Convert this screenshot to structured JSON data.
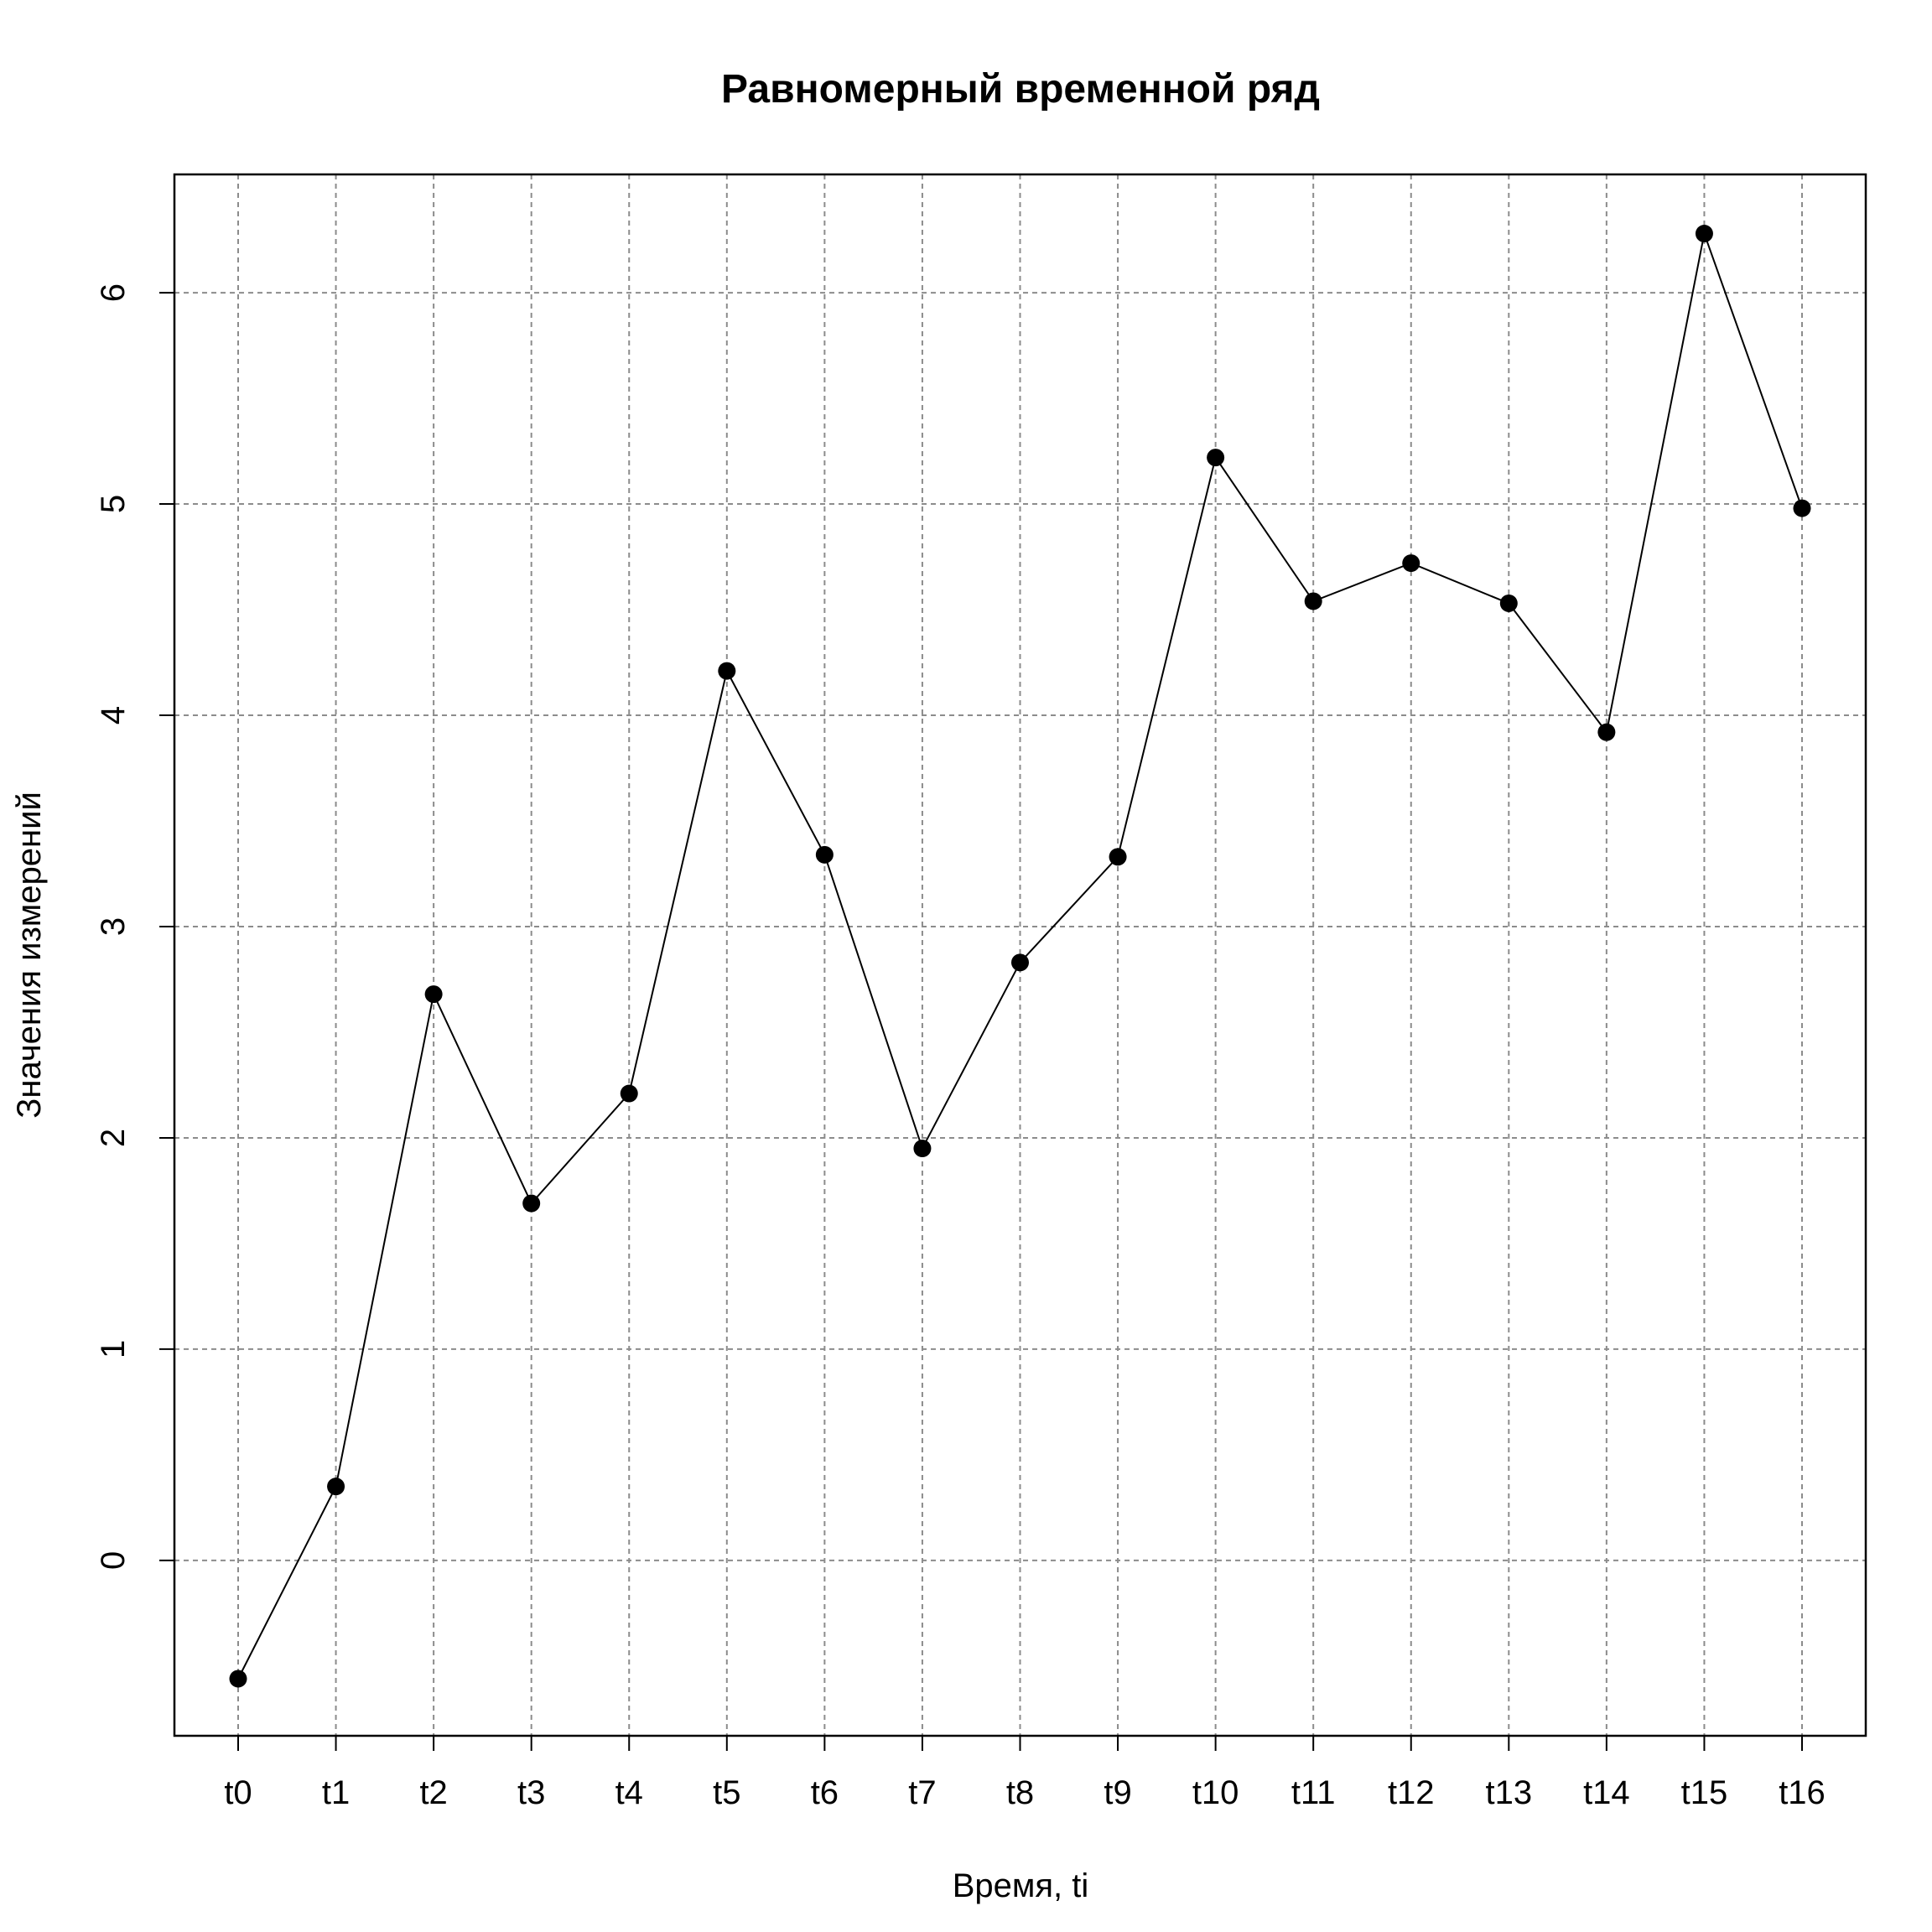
{
  "chart_data": {
    "type": "line",
    "title": "Равномерный временной ряд",
    "xlabel": "Время, ti",
    "ylabel": "Значения измерений",
    "categories": [
      "t0",
      "t1",
      "t2",
      "t3",
      "t4",
      "t5",
      "t6",
      "t7",
      "t8",
      "t9",
      "t10",
      "t11",
      "t12",
      "t13",
      "t14",
      "t15",
      "t16"
    ],
    "series": [
      {
        "values": [
          -0.56,
          0.35,
          2.68,
          1.69,
          2.21,
          4.21,
          3.34,
          1.95,
          2.83,
          3.33,
          5.22,
          4.54,
          4.72,
          4.53,
          3.92,
          6.28,
          4.98
        ]
      }
    ],
    "ylim": [
      -0.83,
      6.56
    ],
    "yticks": [
      0,
      1,
      2,
      3,
      4,
      5,
      6
    ],
    "grid": true,
    "legend": "none",
    "colors": {
      "line": "#000000",
      "points": "#000000",
      "grid": "#8c8c8c"
    }
  }
}
